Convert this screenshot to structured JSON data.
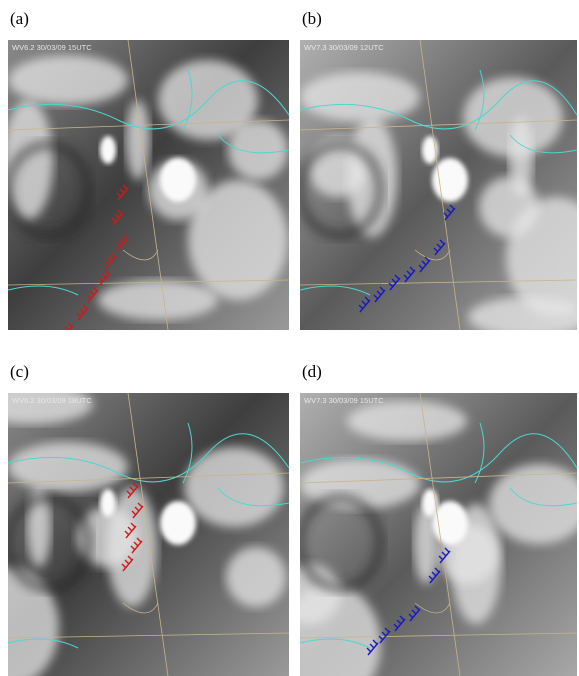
{
  "panels": [
    {
      "label": "(a)",
      "caption": "WV6.2 30/03/09 15UTC"
    },
    {
      "label": "(b)",
      "caption": "WV7.3 30/03/09 12UTC"
    },
    {
      "label": "(c)",
      "caption": "WV6.2 30/03/09 18UTC"
    },
    {
      "label": "(d)",
      "caption": "WV7.3 30/03/09 15UTC"
    }
  ]
}
